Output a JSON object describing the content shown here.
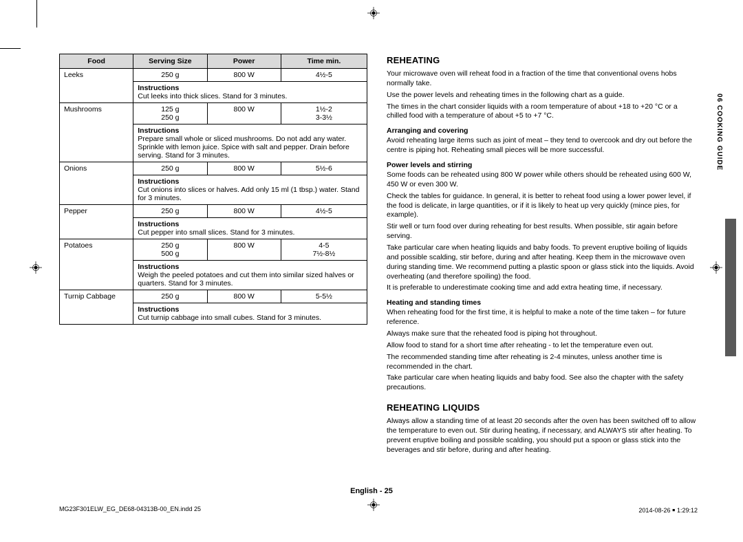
{
  "cropmark": true,
  "table": {
    "headers": [
      "Food",
      "Serving Size",
      "Power",
      "Time min."
    ],
    "rows": [
      {
        "food": "Leeks",
        "size": "250 g",
        "power": "800 W",
        "time": "4½-5",
        "instructions": "Cut leeks into thick slices. Stand for 3 minutes."
      },
      {
        "food": "Mushrooms",
        "size": "125 g\n250 g",
        "power": "800 W",
        "time": "1½-2\n3-3½",
        "instructions": "Prepare small whole or sliced mushrooms. Do not add any water. Sprinkle with lemon juice. Spice with salt and pepper. Drain before serving. Stand for 3 minutes."
      },
      {
        "food": "Onions",
        "size": "250 g",
        "power": "800 W",
        "time": "5½-6",
        "instructions": "Cut onions into slices or halves. Add only 15 ml (1 tbsp.) water. Stand for 3 minutes."
      },
      {
        "food": "Pepper",
        "size": "250 g",
        "power": "800 W",
        "time": "4½-5",
        "instructions": "Cut pepper into small slices. Stand for 3 minutes."
      },
      {
        "food": "Potatoes",
        "size": "250 g\n500 g",
        "power": "800 W",
        "time": "4-5\n7½-8½",
        "instructions": "Weigh the peeled potatoes and cut them into similar sized halves or quarters. Stand for 3 minutes."
      },
      {
        "food": "Turnip Cabbage",
        "size": "250 g",
        "power": "800 W",
        "time": "5-5½",
        "instructions": "Cut turnip cabbage into small cubes. Stand for 3 minutes."
      }
    ],
    "instructions_label": "Instructions"
  },
  "right": {
    "h1": "REHEATING",
    "p1": "Your microwave oven will reheat food in a fraction of the time that conventional ovens hobs normally take.",
    "p2": "Use the power levels and reheating times in the following chart as a guide.",
    "p3": "The times in the chart consider liquids with a room temperature of about +18 to +20 °C or a chilled food with a temperature of about +5 to +7 °C.",
    "sub1": "Arranging and covering",
    "p4": "Avoid reheating large items such as joint of meat – they tend to overcook and dry out before the centre is piping hot. Reheating small pieces will be more successful.",
    "sub2": "Power levels and stirring",
    "p5": "Some foods can be reheated using 800 W power while others should be reheated using 600 W, 450 W or even 300 W.",
    "p6": "Check the tables for guidance. In general, it is better to reheat food using a lower power level, if the food is delicate, in large quantities, or if it is likely to heat up very quickly (mince pies, for example).",
    "p7": "Stir well or turn food over during reheating for best results. When possible, stir again before serving.",
    "p8": "Take particular care when heating liquids and baby foods. To prevent eruptive boiling of liquids and possible scalding, stir before, during and after heating. Keep them in the microwave oven during standing time. We recommend putting a plastic spoon or glass stick into the liquids. Avoid overheating (and therefore spoiling) the food.",
    "p9": "It is preferable to underestimate cooking time and add extra heating time, if necessary.",
    "sub3": "Heating and standing times",
    "p10": "When reheating food for the first time, it is helpful to make a note of the time taken – for future reference.",
    "p11": "Always make sure that the reheated food is piping hot throughout.",
    "p12": "Allow food to stand for a short time after reheating - to let the temperature even out.",
    "p13": "The recommended standing time after reheating is 2-4 minutes, unless another time is recommended in the chart.",
    "p14": "Take particular care when heating liquids and baby food. See also the chapter with the safety precautions.",
    "h2": "REHEATING LIQUIDS",
    "p15": "Always allow a standing time of at least 20 seconds after the oven has been switched off to allow the temperature to even out. Stir during heating, if necessary, and ALWAYS stir after heating. To prevent eruptive boiling and possible scalding, you should put a spoon or glass stick into the beverages and stir before, during and after heating."
  },
  "sidebar": "06  COOKING GUIDE",
  "pageLabel": "English - 25",
  "footer": {
    "left": "MG23F301ELW_EG_DE68-04313B-00_EN.indd   25",
    "right": "2014-08-26   ￭ 1:29:12"
  },
  "colors": {
    "header_bg": "#d9d9d9",
    "sidebar_stripe": "#595959"
  }
}
